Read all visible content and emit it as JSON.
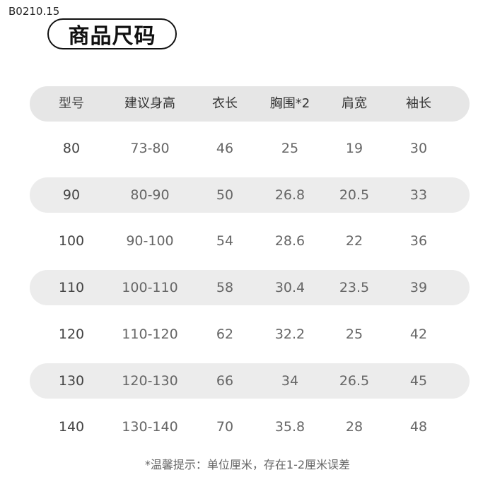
{
  "code": "B0210.15",
  "title": "商品尺码",
  "headers": [
    "型号",
    "建议身高",
    "衣长",
    "胸围*2",
    "肩宽",
    "袖长"
  ],
  "rows": [
    [
      "80",
      "73-80",
      "46",
      "25",
      "19",
      "30"
    ],
    [
      "90",
      "80-90",
      "50",
      "26.8",
      "20.5",
      "33"
    ],
    [
      "100",
      "90-100",
      "54",
      "28.6",
      "22",
      "36"
    ],
    [
      "110",
      "100-110",
      "58",
      "30.4",
      "23.5",
      "39"
    ],
    [
      "120",
      "110-120",
      "62",
      "32.2",
      "25",
      "42"
    ],
    [
      "130",
      "120-130",
      "66",
      "34",
      "26.5",
      "45"
    ],
    [
      "140",
      "130-140",
      "70",
      "35.8",
      "28",
      "48"
    ]
  ],
  "note": "*温馨提示：单位厘米，存在1-2厘米误差"
}
